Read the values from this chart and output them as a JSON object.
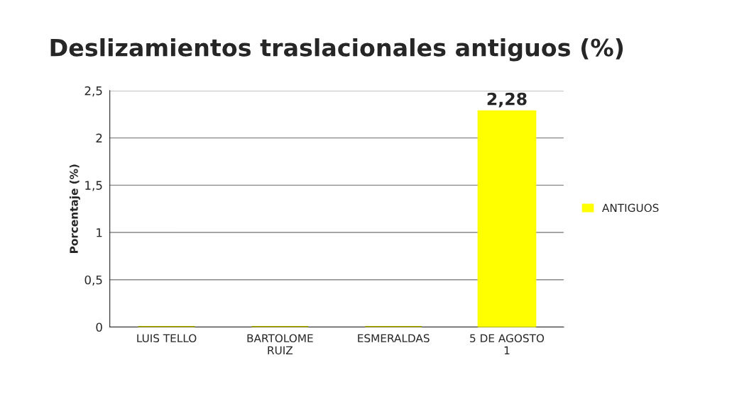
{
  "chart_data": {
    "type": "bar",
    "title": "Deslizamientos traslacionales antiguos (%)",
    "ylabel": "Porcentaje (%)",
    "categories": [
      "LUIS TELLO",
      "BARTOLOME\nRUIZ",
      "ESMERALDAS",
      "5 DE AGOSTO\n1"
    ],
    "series": [
      {
        "name": "ANTIGUOS",
        "color": "#ffff00",
        "colors": [
          "#b8b800",
          "#b8b800",
          "#b8b800",
          "#ffff00"
        ],
        "values": [
          0,
          0,
          0,
          2.28
        ],
        "value_labels": [
          null,
          null,
          null,
          "2,28"
        ]
      }
    ],
    "ylim": [
      0,
      2.5
    ],
    "yticks": [
      0,
      {
        "value": 0.5,
        "label": "0,5"
      },
      1,
      {
        "value": 1.5,
        "label": "1,5"
      },
      2,
      {
        "value": 2.5,
        "label": "2,5"
      }
    ],
    "grid": "y",
    "legend": "right"
  }
}
